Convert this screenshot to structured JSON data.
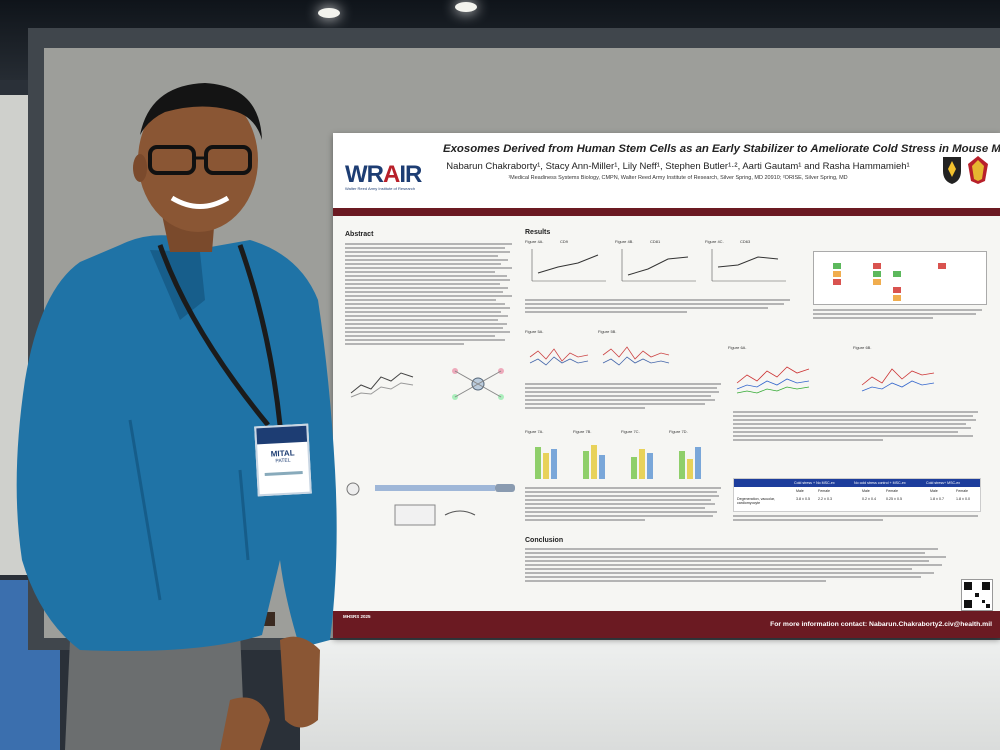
{
  "scene": {
    "description_colors": {
      "shirt": "#1f73a6",
      "poster_accent": "#6b1a22",
      "board": "#9d9e9a"
    }
  },
  "poster": {
    "logo": "WRAIR",
    "logo_subtitle": "Walter Reed Army Institute of Research",
    "title": "Exosomes Derived from Human Stem Cells as an Early Stabilizer to Ameliorate Cold Stress in Mouse Model",
    "authors": "Nabarun Chakraborty¹, Stacy Ann-Miller¹, Lily Neff¹, Stephen Butler¹·², Aarti Gautam¹ and Rasha Hammamieh¹",
    "affiliations": "¹Medical Readiness Systems Biology, CMPN, Walter Reed Army Institute of Research, Silver Spring, MD 20910; ²ORISE, Silver Spring, MD",
    "sections": {
      "abstract": "Abstract",
      "results": "Results",
      "conclusion": "Conclusion"
    },
    "figure_labels": [
      "Figure 4A.",
      "Figure 4B.",
      "Figure 4C.",
      "Figure 5A.",
      "Figure 5B.",
      "Figure 6A.",
      "Figure 6B.",
      "Figure 7A.",
      "Figure 7B.",
      "Figure 7C.",
      "Figure 7D."
    ],
    "chart_titles": [
      "CD9",
      "CD81",
      "CD63"
    ],
    "heart_table": {
      "headers": [
        "Cold stress + No MSC-ex",
        "No cold stress control + MSC-ex",
        "Cold stress+ MSC-ex"
      ],
      "subheaders": [
        "Male",
        "Female",
        "Male",
        "Female",
        "Male",
        "Female"
      ],
      "row_label": "Degeneration, vacuolar, cardiomyocyte",
      "values": [
        "3.8 ± 0.5",
        "2.2 ± 0.3",
        "0.2 ± 0.4",
        "0.25 ± 0.5",
        "1.8 ± 0.7",
        "1.8 ± 0.0"
      ]
    },
    "footer_left": "MHSRS 2025",
    "footer_contact": "For more information contact: Nabarun.Chakraborty2.civ@health.mil"
  },
  "badge": {
    "name": "MITAL",
    "surname": "PATEL"
  }
}
